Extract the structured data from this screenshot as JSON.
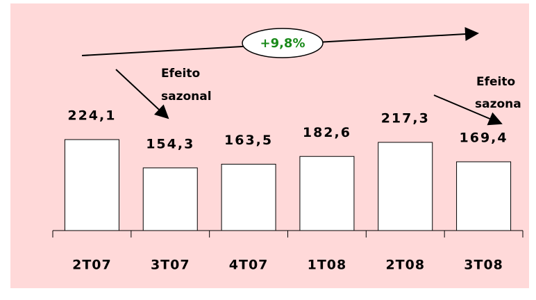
{
  "chart_data": {
    "type": "bar",
    "categories": [
      "2T07",
      "3T07",
      "4T07",
      "1T08",
      "2T08",
      "3T08"
    ],
    "values": [
      224.1,
      154.3,
      163.5,
      182.6,
      217.3,
      169.4
    ],
    "value_labels": [
      "224,1",
      "154,3",
      "163,5",
      "182,6",
      "217,3",
      "169,4"
    ],
    "color": "#ffffff",
    "annotations": {
      "growth": "+9,8%",
      "seasonal_left": [
        "Efeito",
        "sazonal"
      ],
      "seasonal_right": [
        "Efeito",
        "sazona"
      ]
    }
  }
}
